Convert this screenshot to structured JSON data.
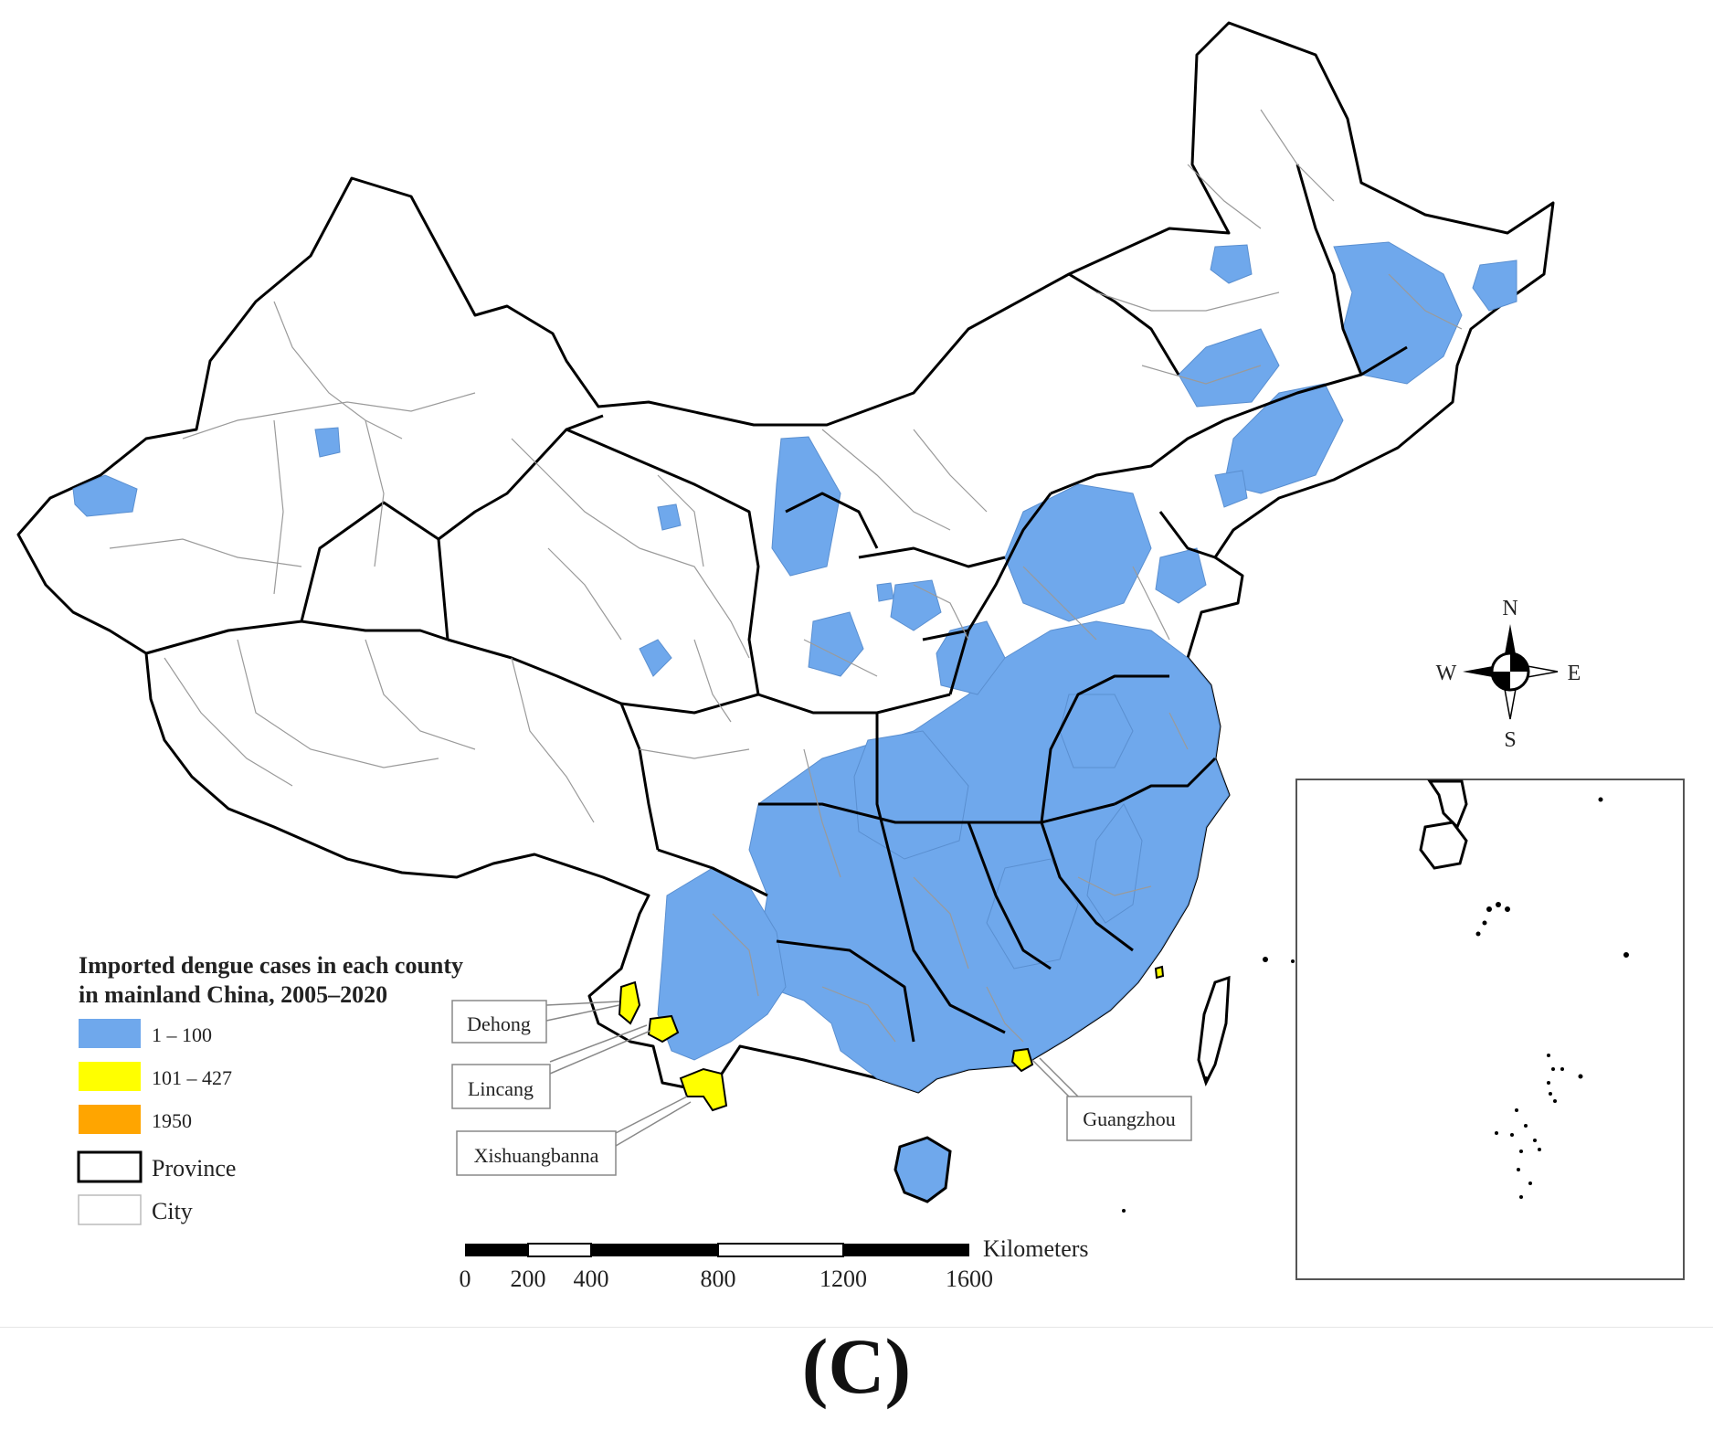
{
  "legend": {
    "title_line1": "Imported dengue cases in each county",
    "title_line2": "in mainland China, 2005–2020",
    "classes": [
      {
        "label": "1 – 100",
        "color": "#6fa8ec"
      },
      {
        "label": "101 – 427",
        "color": "#ffff00"
      },
      {
        "label": "1950",
        "color": "#ffa500"
      }
    ],
    "province_label": "Province",
    "city_label": "City"
  },
  "callouts": {
    "dehong": "Dehong",
    "lincang": "Lincang",
    "xishuangbanna": "Xishuangbanna",
    "guangzhou": "Guangzhou"
  },
  "compass": {
    "n": "N",
    "s": "S",
    "e": "E",
    "w": "W"
  },
  "scalebar": {
    "unit": "Kilometers",
    "ticks": [
      "0",
      "200",
      "400",
      "800",
      "1200",
      "1600"
    ]
  },
  "figure_label": "(C)",
  "colors": {
    "low": "#6fa8ec",
    "mid": "#ffff00",
    "high": "#ffa500",
    "province_border": "#000000",
    "city_border": "#999999"
  }
}
